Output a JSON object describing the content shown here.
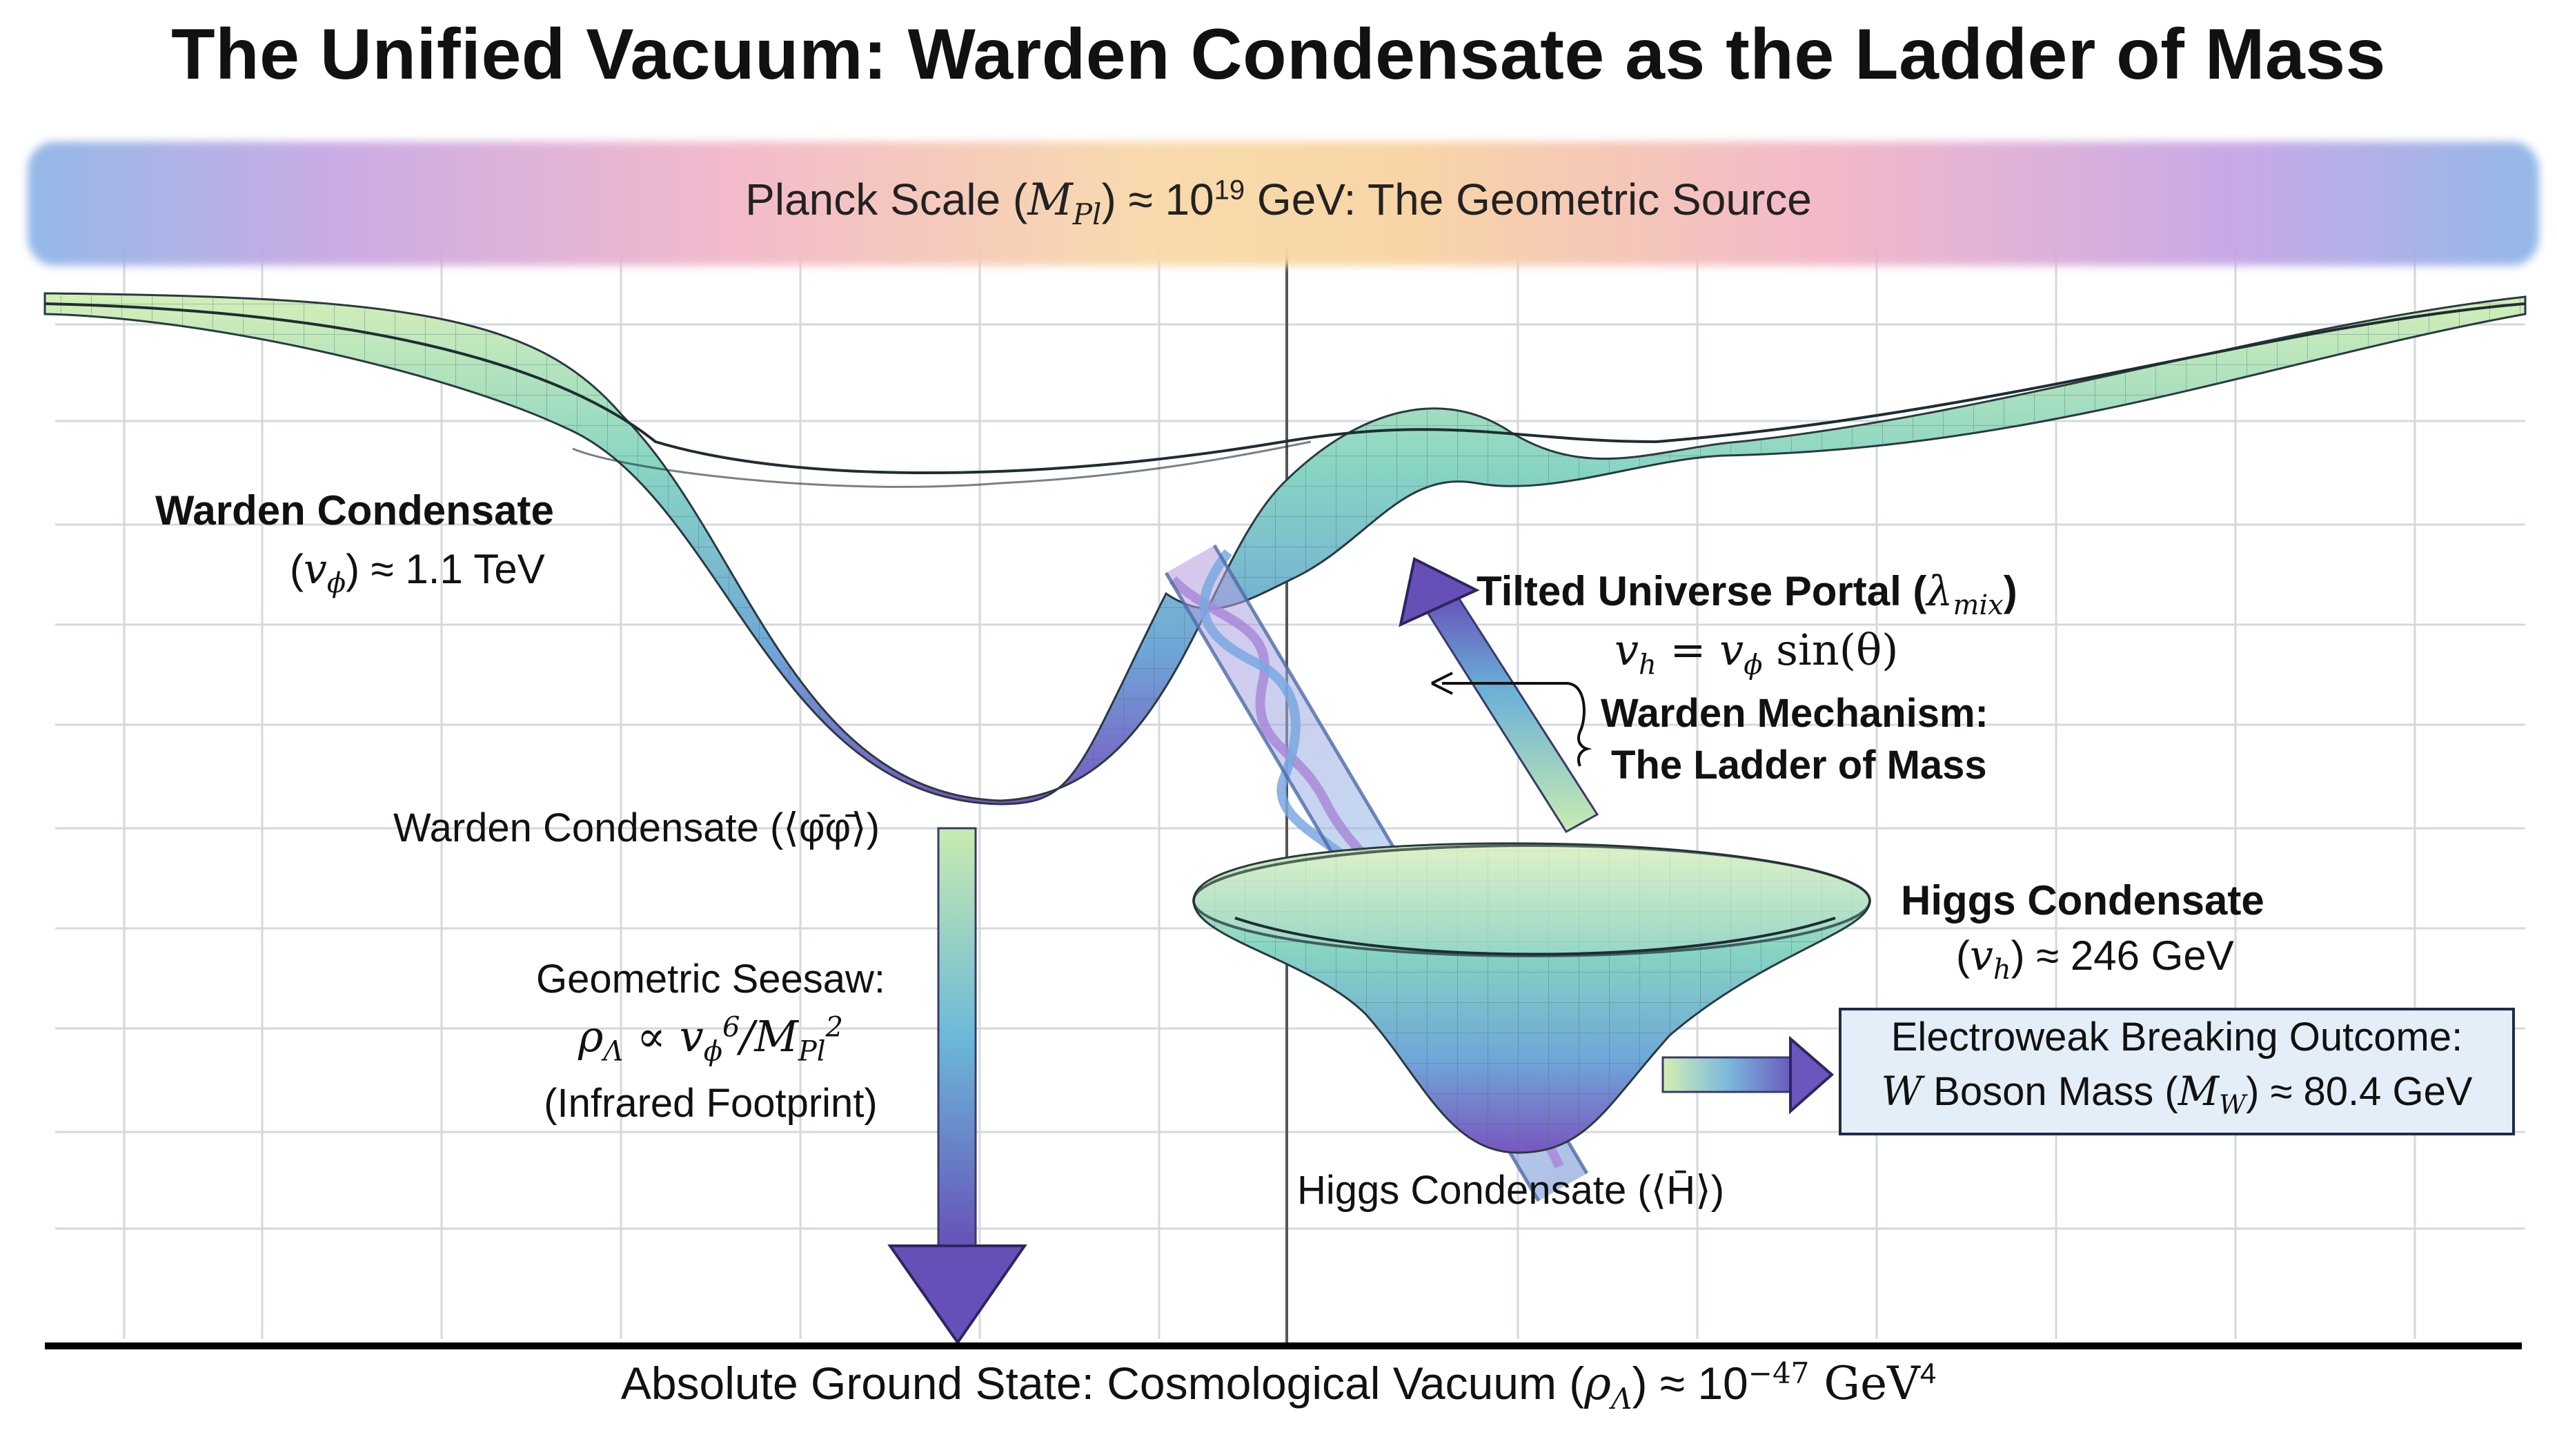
{
  "title": "The Unified Vacuum: Warden Condensate as the Ladder of Mass",
  "planck": {
    "prefix": "Planck Scale (",
    "symbol": "M",
    "sub": "Pl",
    "mid": ") ≈ 10",
    "exp": "19",
    "suffix": " GeV: The Geometric Source"
  },
  "warden_well": {
    "heading": "Warden Condensate",
    "vev_open": "(",
    "vev_symbol": "v",
    "vev_sub": "ϕ",
    "vev_rest": ") ≈ 1.1 TeV",
    "bottom_label": "Warden Condensate (⟨φ̄φ̄⟩)"
  },
  "seesaw": {
    "line1": "Geometric Seesaw:",
    "line2_a": "ρ",
    "line2_a_sub": "Λ",
    "line2_b": " ∝ v",
    "line2_b_sub": "ϕ",
    "line2_b_sup": "6",
    "line2_c": "/M",
    "line2_c_sub": "Pl",
    "line2_c_sup": "2",
    "line3": "(Infrared Footprint)"
  },
  "portal": {
    "heading": "Tilted Universe Portal (",
    "heading_symbol": "λ",
    "heading_sub": "mix",
    "heading_close": ")",
    "eq_a": "v",
    "eq_a_sub": "h",
    "eq_b": " = v",
    "eq_b_sub": "ϕ",
    "eq_c": " sin(θ)"
  },
  "mechanism": {
    "line1": "Warden Mechanism:",
    "line2": "The Ladder of Mass"
  },
  "higgs_well": {
    "heading": "Higgs Condensate",
    "vev_open": "(",
    "vev_symbol": "v",
    "vev_sub": "h",
    "vev_rest": ") ≈ 246 GeV",
    "bottom_label": "Higgs Condensate (⟨H̄⟩)"
  },
  "outcome": {
    "line1": "Electroweak Breaking Outcome:",
    "line2_a": "W",
    "line2_b": " Boson Mass (",
    "line2_c": "M",
    "line2_c_sub": "W",
    "line2_d": ") ≈ 80.4 GeV"
  },
  "ground": {
    "prefix": "Absolute Ground State: Cosmological Vacuum (",
    "symbol": "ρ",
    "sub": "Λ",
    "suffix": ") ≈ 10",
    "exp": "−47",
    "unit": " GeV",
    "unit_exp": "4"
  },
  "colors": {
    "surface_top": "#c9e8b4",
    "surface_mid": "#7fd0c8",
    "surface_bottom": "#7a5fc0",
    "arrow_purple": "#6a5ab8",
    "box_fill": "#e4eef8"
  }
}
